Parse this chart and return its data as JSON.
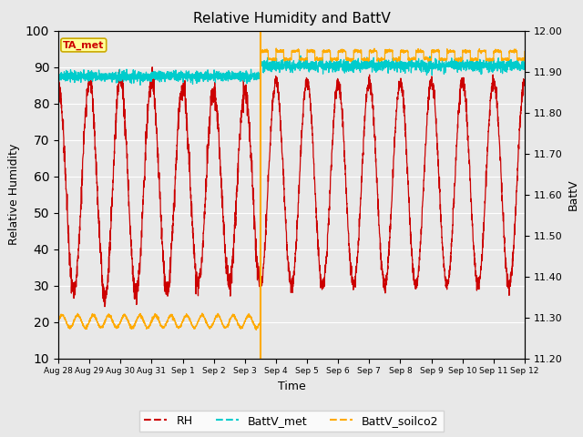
{
  "title": "Relative Humidity and BattV",
  "xlabel": "Time",
  "ylabel_left": "Relative Humidity",
  "ylabel_right": "BattV",
  "annotation_text": "TA_met",
  "annotation_bg": "#FFFF99",
  "annotation_border": "#CCAA00",
  "annotation_text_color": "#CC0000",
  "ylim_left": [
    10,
    100
  ],
  "ylim_right": [
    11.2,
    12.0
  ],
  "yticks_left": [
    10,
    20,
    30,
    40,
    50,
    60,
    70,
    80,
    90,
    100
  ],
  "yticks_right": [
    11.2,
    11.3,
    11.4,
    11.5,
    11.6,
    11.7,
    11.8,
    11.9,
    12.0
  ],
  "bg_color": "#E8E8E8",
  "rh_color": "#CC0000",
  "battv_met_color": "#00CCCC",
  "battv_soilco2_color": "#FFAA00",
  "gap_x": 6.5,
  "legend_labels": [
    "RH",
    "BattV_met",
    "BattV_soilco2"
  ],
  "x_tick_labels": [
    "Aug 28",
    "Aug 29",
    "Aug 30",
    "Aug 31",
    "Sep 1",
    "Sep 2",
    "Sep 3",
    "Sep 4",
    "Sep 5",
    "Sep 6",
    "Sep 7",
    "Sep 8",
    "Sep 9",
    "Sep 10",
    "Sep 11",
    "Sep 12"
  ],
  "x_tick_positions": [
    0,
    1,
    2,
    3,
    4,
    5,
    6,
    7,
    8,
    9,
    10,
    11,
    12,
    13,
    14,
    15
  ],
  "grid_color": "white",
  "grid_linewidth": 0.8
}
